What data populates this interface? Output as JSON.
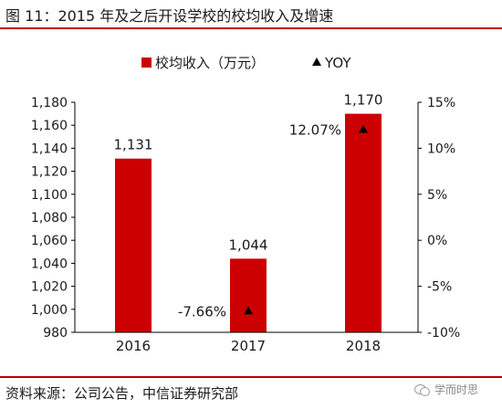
{
  "header": {
    "title": "图 11：2015 年及之后开设学校的校均收入及增速"
  },
  "footer": {
    "source": "资料来源：公司公告，中信证券研究部",
    "watermark": "学而时思",
    "watermark_icon": "wechat-icon"
  },
  "chart_data": {
    "type": "bar",
    "categories": [
      "2016",
      "2017",
      "2018"
    ],
    "series": [
      {
        "name": "校均收入（万元）",
        "type": "bar",
        "axis": "left",
        "color": "#cc0000",
        "values": [
          1131,
          1044,
          1170
        ],
        "value_labels": [
          "1,131",
          "1,044",
          "1,170"
        ]
      },
      {
        "name": "YOY",
        "type": "scatter",
        "marker": "triangle",
        "axis": "right",
        "color": "#000000",
        "values": [
          null,
          -7.66,
          12.07
        ],
        "value_labels": [
          null,
          "-7.66%",
          "12.07%"
        ]
      }
    ],
    "y_left": {
      "ylim": [
        980,
        1180
      ],
      "ticks": [
        980,
        1000,
        1020,
        1040,
        1060,
        1080,
        1100,
        1120,
        1140,
        1160,
        1180
      ],
      "tick_labels": [
        "980",
        "1,000",
        "1,020",
        "1,040",
        "1,060",
        "1,080",
        "1,100",
        "1,120",
        "1,140",
        "1,160",
        "1,180"
      ]
    },
    "y_right": {
      "ylim": [
        -10,
        15
      ],
      "ticks": [
        -10,
        -5,
        0,
        5,
        10,
        15
      ],
      "tick_labels": [
        "-10%",
        "-5%",
        "0%",
        "5%",
        "10%",
        "15%"
      ]
    },
    "legend_position": "top-center",
    "grid": false
  }
}
